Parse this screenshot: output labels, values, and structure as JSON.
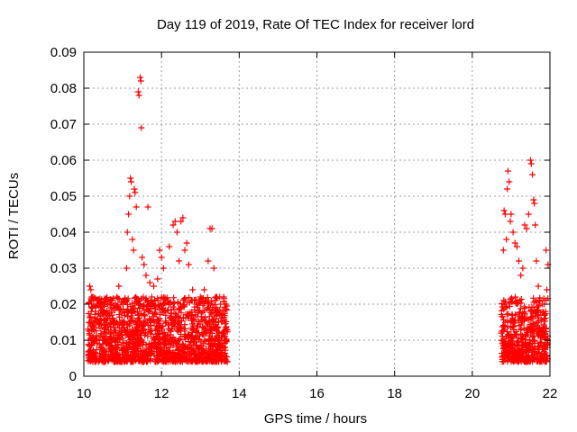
{
  "chart_data": {
    "type": "scatter",
    "title": "Day 119 of 2019, Rate Of TEC Index for receiver lord",
    "xlabel": "GPS time / hours",
    "ylabel": "ROTI / TECUs",
    "xlim": [
      10,
      22
    ],
    "ylim": [
      0,
      0.09
    ],
    "x_ticks": [
      10,
      12,
      14,
      16,
      18,
      20,
      22
    ],
    "x_tick_labels": [
      "10",
      "12",
      "14",
      "16",
      "18",
      "20",
      "22"
    ],
    "y_ticks": [
      0,
      0.01,
      0.02,
      0.03,
      0.04,
      0.05,
      0.06,
      0.07,
      0.08,
      0.09
    ],
    "y_tick_labels": [
      "0",
      "0.01",
      "0.02",
      "0.03",
      "0.04",
      "0.05",
      "0.06",
      "0.07",
      "0.08",
      "0.09"
    ],
    "grid": true,
    "marker": "+",
    "color": "#ff0000",
    "series": [
      {
        "name": "ROTI",
        "points": [
          [
            10.15,
            0.025
          ],
          [
            10.18,
            0.024
          ],
          [
            10.2,
            0.022
          ],
          [
            10.25,
            0.02
          ],
          [
            10.3,
            0.018
          ],
          [
            10.35,
            0.016
          ],
          [
            10.5,
            0.02
          ],
          [
            10.6,
            0.016
          ],
          [
            10.75,
            0.019
          ],
          [
            10.85,
            0.022
          ],
          [
            10.9,
            0.025
          ],
          [
            11.05,
            0.021
          ],
          [
            11.1,
            0.03
          ],
          [
            11.12,
            0.04
          ],
          [
            11.15,
            0.045
          ],
          [
            11.18,
            0.05
          ],
          [
            11.2,
            0.055
          ],
          [
            11.22,
            0.054
          ],
          [
            11.25,
            0.038
          ],
          [
            11.28,
            0.035
          ],
          [
            11.3,
            0.052
          ],
          [
            11.32,
            0.051
          ],
          [
            11.35,
            0.047
          ],
          [
            11.4,
            0.079
          ],
          [
            11.42,
            0.078
          ],
          [
            11.45,
            0.083
          ],
          [
            11.47,
            0.082
          ],
          [
            11.48,
            0.069
          ],
          [
            11.5,
            0.033
          ],
          [
            11.55,
            0.031
          ],
          [
            11.6,
            0.028
          ],
          [
            11.65,
            0.047
          ],
          [
            11.7,
            0.026
          ],
          [
            11.75,
            0.022
          ],
          [
            11.8,
            0.025
          ],
          [
            11.9,
            0.027
          ],
          [
            11.95,
            0.035
          ],
          [
            12.0,
            0.033
          ],
          [
            12.05,
            0.03
          ],
          [
            12.2,
            0.036
          ],
          [
            12.3,
            0.042
          ],
          [
            12.35,
            0.043
          ],
          [
            12.4,
            0.04
          ],
          [
            12.45,
            0.032
          ],
          [
            12.5,
            0.043
          ],
          [
            12.55,
            0.044
          ],
          [
            12.6,
            0.035
          ],
          [
            12.65,
            0.037
          ],
          [
            12.7,
            0.031
          ],
          [
            12.8,
            0.024
          ],
          [
            12.9,
            0.02
          ],
          [
            13.0,
            0.022
          ],
          [
            13.1,
            0.024
          ],
          [
            13.2,
            0.032
          ],
          [
            13.25,
            0.041
          ],
          [
            13.3,
            0.041
          ],
          [
            13.35,
            0.03
          ],
          [
            13.4,
            0.022
          ],
          [
            13.5,
            0.022
          ],
          [
            13.6,
            0.022
          ],
          [
            13.65,
            0.02
          ],
          [
            20.8,
            0.035
          ],
          [
            20.82,
            0.046
          ],
          [
            20.85,
            0.045
          ],
          [
            20.88,
            0.038
          ],
          [
            20.9,
            0.052
          ],
          [
            20.92,
            0.057
          ],
          [
            20.95,
            0.054
          ],
          [
            20.98,
            0.043
          ],
          [
            21.0,
            0.045
          ],
          [
            21.05,
            0.04
          ],
          [
            21.1,
            0.037
          ],
          [
            21.15,
            0.036
          ],
          [
            21.2,
            0.032
          ],
          [
            21.25,
            0.028
          ],
          [
            21.3,
            0.03
          ],
          [
            21.35,
            0.042
          ],
          [
            21.4,
            0.041
          ],
          [
            21.45,
            0.045
          ],
          [
            21.5,
            0.06
          ],
          [
            21.52,
            0.059
          ],
          [
            21.55,
            0.056
          ],
          [
            21.58,
            0.049
          ],
          [
            21.6,
            0.048
          ],
          [
            21.62,
            0.042
          ],
          [
            21.65,
            0.032
          ],
          [
            21.7,
            0.025
          ],
          [
            21.8,
            0.02
          ],
          [
            21.85,
            0.02
          ],
          [
            21.9,
            0.035
          ],
          [
            21.92,
            0.024
          ],
          [
            21.95,
            0.031
          ]
        ]
      }
    ]
  }
}
